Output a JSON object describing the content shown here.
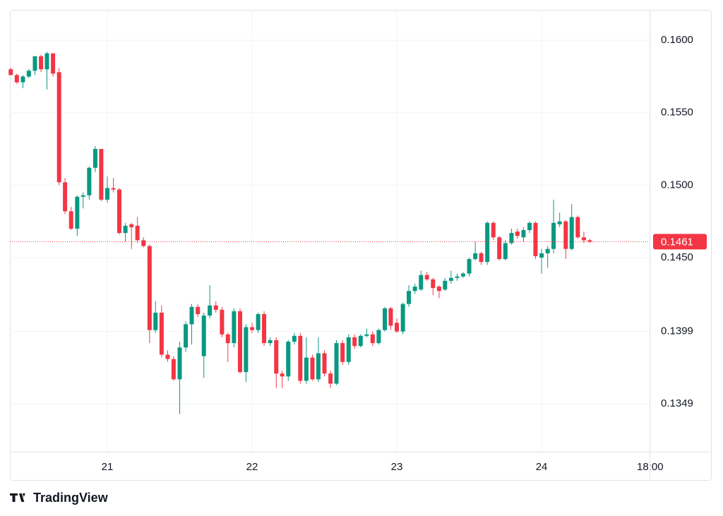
{
  "chart_data": {
    "type": "candlestick",
    "x": [
      20.333,
      20.375,
      20.417,
      20.458,
      20.5,
      20.542,
      20.583,
      20.625,
      20.667,
      20.708,
      20.75,
      20.792,
      20.833,
      20.875,
      20.917,
      20.958,
      21,
      21.042,
      21.083,
      21.125,
      21.167,
      21.208,
      21.25,
      21.292,
      21.333,
      21.375,
      21.417,
      21.458,
      21.5,
      21.542,
      21.583,
      21.625,
      21.667,
      21.708,
      21.75,
      21.792,
      21.833,
      21.875,
      21.917,
      21.958,
      22,
      22.042,
      22.083,
      22.125,
      22.167,
      22.208,
      22.25,
      22.292,
      22.333,
      22.375,
      22.417,
      22.458,
      22.5,
      22.542,
      22.583,
      22.625,
      22.667,
      22.708,
      22.75,
      22.792,
      22.833,
      22.875,
      22.917,
      22.958,
      23,
      23.042,
      23.083,
      23.125,
      23.167,
      23.208,
      23.25,
      23.292,
      23.333,
      23.375,
      23.417,
      23.458,
      23.5,
      23.542,
      23.583,
      23.625,
      23.667,
      23.708,
      23.75,
      23.792,
      23.833,
      23.875,
      23.917,
      23.958,
      24,
      24.042,
      24.083,
      24.125,
      24.167,
      24.208,
      24.25,
      24.292,
      24.333
    ],
    "open": [
      0.158,
      0.1576,
      0.1571,
      0.1575,
      0.1579,
      0.1589,
      0.158,
      0.1591,
      0.1578,
      0.1502,
      0.1482,
      0.147,
      0.1492,
      0.1493,
      0.1512,
      0.1525,
      0.149,
      0.1498,
      0.1497,
      0.1467,
      0.1473,
      0.1472,
      0.1462,
      0.1458,
      0.14,
      0.1412,
      0.1383,
      0.138,
      0.1366,
      0.1388,
      0.1404,
      0.1416,
      0.1382,
      0.141,
      0.1417,
      0.1414,
      0.1397,
      0.1391,
      0.1413,
      0.1371,
      0.1402,
      0.14,
      0.1411,
      0.1391,
      0.1393,
      0.137,
      0.1368,
      0.1392,
      0.1396,
      0.1365,
      0.1381,
      0.1366,
      0.1384,
      0.137,
      0.1363,
      0.1391,
      0.1378,
      0.1395,
      0.1389,
      0.1396,
      0.1397,
      0.1391,
      0.14,
      0.1415,
      0.1405,
      0.1399,
      0.1418,
      0.1427,
      0.1428,
      0.1438,
      0.1435,
      0.143,
      0.1428,
      0.1434,
      0.1436,
      0.1437,
      0.1439,
      0.1449,
      0.1453,
      0.1447,
      0.1474,
      0.1464,
      0.1449,
      0.146,
      0.1468,
      0.1464,
      0.1469,
      0.1474,
      0.145,
      0.1453,
      0.1456,
      0.1473,
      0.1475,
      0.1456,
      0.1478,
      0.1464,
      0.1462
    ],
    "high": [
      0.1581,
      0.1577,
      0.1576,
      0.158,
      0.1589,
      0.159,
      0.1592,
      0.1591,
      0.1581,
      0.1505,
      0.1485,
      0.1493,
      0.1495,
      0.1513,
      0.1527,
      0.1525,
      0.1506,
      0.1505,
      0.1498,
      0.1474,
      0.1474,
      0.1478,
      0.1464,
      0.1459,
      0.142,
      0.1417,
      0.1386,
      0.1382,
      0.1392,
      0.1406,
      0.1418,
      0.1418,
      0.1412,
      0.1431,
      0.142,
      0.1416,
      0.1398,
      0.1415,
      0.1415,
      0.1404,
      0.1405,
      0.1412,
      0.1413,
      0.1395,
      0.1395,
      0.1372,
      0.1393,
      0.1398,
      0.1398,
      0.1395,
      0.1383,
      0.1395,
      0.1386,
      0.1372,
      0.1393,
      0.1393,
      0.1397,
      0.1397,
      0.1397,
      0.1401,
      0.1399,
      0.1401,
      0.1416,
      0.1416,
      0.1408,
      0.1419,
      0.1431,
      0.1432,
      0.1441,
      0.144,
      0.1436,
      0.1431,
      0.1436,
      0.1441,
      0.1439,
      0.144,
      0.145,
      0.1461,
      0.1454,
      0.1475,
      0.1475,
      0.1465,
      0.1462,
      0.147,
      0.147,
      0.1471,
      0.1475,
      0.1475,
      0.1456,
      0.1458,
      0.149,
      0.1481,
      0.1476,
      0.1487,
      0.1479,
      0.1468,
      0.1463
    ],
    "low": [
      0.1576,
      0.157,
      0.1567,
      0.1574,
      0.1576,
      0.1578,
      0.1566,
      0.1575,
      0.15,
      0.148,
      0.1469,
      0.1465,
      0.1484,
      0.149,
      0.1509,
      0.1489,
      0.1488,
      0.1495,
      0.1466,
      0.1461,
      0.1456,
      0.146,
      0.1457,
      0.1391,
      0.1398,
      0.1381,
      0.1378,
      0.1365,
      0.1342,
      0.1385,
      0.139,
      0.1409,
      0.1367,
      0.1408,
      0.1412,
      0.1395,
      0.1378,
      0.1388,
      0.137,
      0.1364,
      0.1398,
      0.1398,
      0.1389,
      0.1389,
      0.136,
      0.136,
      0.1365,
      0.139,
      0.1363,
      0.1363,
      0.1365,
      0.1364,
      0.1368,
      0.136,
      0.1362,
      0.1376,
      0.1376,
      0.1387,
      0.1388,
      0.1395,
      0.1389,
      0.139,
      0.1399,
      0.14,
      0.1398,
      0.1397,
      0.1416,
      0.1425,
      0.1427,
      0.1434,
      0.1424,
      0.1422,
      0.1427,
      0.1432,
      0.1434,
      0.1436,
      0.1437,
      0.1448,
      0.1445,
      0.1445,
      0.1462,
      0.1448,
      0.1448,
      0.1459,
      0.1463,
      0.1461,
      0.1467,
      0.1449,
      0.1439,
      0.1443,
      0.1453,
      0.1471,
      0.1449,
      0.1455,
      0.1463,
      0.146,
      0.146
    ],
    "close": [
      0.1576,
      0.1571,
      0.1575,
      0.1579,
      0.1589,
      0.158,
      0.1591,
      0.1577,
      0.1502,
      0.1482,
      0.147,
      0.1492,
      0.1493,
      0.1512,
      0.1525,
      0.149,
      0.1498,
      0.1497,
      0.1467,
      0.1472,
      0.1471,
      0.1462,
      0.1458,
      0.14,
      0.1412,
      0.1383,
      0.138,
      0.1366,
      0.1388,
      0.1404,
      0.1416,
      0.1411,
      0.141,
      0.1417,
      0.1414,
      0.1397,
      0.1391,
      0.1413,
      0.1371,
      0.1402,
      0.14,
      0.1411,
      0.1391,
      0.1393,
      0.137,
      0.1368,
      0.1392,
      0.1396,
      0.1365,
      0.1381,
      0.1366,
      0.1384,
      0.137,
      0.1363,
      0.1391,
      0.1378,
      0.1395,
      0.1389,
      0.1396,
      0.1397,
      0.1391,
      0.14,
      0.1415,
      0.1403,
      0.1399,
      0.1418,
      0.1427,
      0.143,
      0.1438,
      0.1435,
      0.1429,
      0.1427,
      0.1434,
      0.1436,
      0.1437,
      0.1439,
      0.1449,
      0.1453,
      0.1447,
      0.1474,
      0.1464,
      0.1449,
      0.146,
      0.1467,
      0.1465,
      0.1469,
      0.1474,
      0.1451,
      0.1453,
      0.1456,
      0.1474,
      0.1475,
      0.1456,
      0.1478,
      0.1464,
      0.1462,
      0.1461
    ],
    "up_color": "#089981",
    "down_color": "#f23645",
    "xlim": [
      20.327,
      24.746
    ],
    "ylim": [
      0.1316,
      0.1621
    ],
    "xticks": [
      21,
      22,
      23,
      24,
      {
        "value": 24.75,
        "label": "18:00"
      }
    ],
    "yticks": [
      {
        "value": 0.16,
        "label": "0.1600"
      },
      {
        "value": 0.155,
        "label": "0.1550"
      },
      {
        "value": 0.15,
        "label": "0.1500"
      },
      {
        "value": 0.145,
        "label": "0.1450"
      },
      {
        "value": 0.1399,
        "label": "0.1399"
      },
      {
        "value": 0.1349,
        "label": "0.1349"
      }
    ],
    "grid": true,
    "last_price": 0.1461,
    "last_price_color": "#f23645",
    "watermark": "TradingView"
  }
}
